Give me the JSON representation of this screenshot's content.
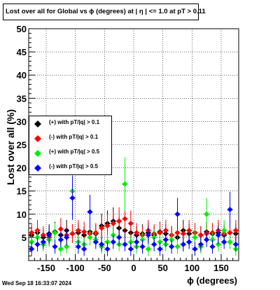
{
  "title": "Lost over all for Global vs ϕ (degrees) at |  η | <= 1.0 at pT > 0.11",
  "footer": "Wed Sep 18 16:33:07 2024",
  "chart_data": {
    "type": "scatter",
    "xlabel": "ϕ (degrees)",
    "ylabel": "Lost over all (%)",
    "xlim": [
      -180,
      180
    ],
    "ylim": [
      0,
      50
    ],
    "xticks": [
      -150,
      -100,
      -50,
      0,
      50,
      100,
      150
    ],
    "yticks": [
      5,
      10,
      15,
      20,
      25,
      30,
      35,
      40,
      45,
      50
    ],
    "grid": true,
    "legend_position": "left-middle",
    "series": [
      {
        "name": "(+) with pT/|q| > 0.1",
        "color": "#000000",
        "x": [
          -175,
          -165,
          -155,
          -145,
          -135,
          -125,
          -115,
          -105,
          -95,
          -85,
          -75,
          -65,
          -55,
          -45,
          -35,
          -25,
          -15,
          -5,
          5,
          15,
          25,
          35,
          45,
          55,
          65,
          75,
          85,
          95,
          105,
          115,
          125,
          135,
          145,
          155,
          165,
          175
        ],
        "y": [
          5.5,
          6.0,
          5.0,
          5.8,
          6.2,
          5.5,
          6.5,
          5.8,
          6.0,
          5.5,
          6.2,
          5.8,
          7.5,
          8.0,
          8.5,
          7.0,
          6.5,
          6.0,
          5.5,
          5.8,
          6.0,
          5.5,
          6.2,
          5.8,
          5.5,
          5.0,
          6.5,
          5.8,
          6.0,
          5.5,
          6.2,
          5.8,
          6.0,
          5.5,
          6.0,
          5.8
        ]
      },
      {
        "name": "(-) with pT/|q| > 0.1",
        "color": "#ff0000",
        "x": [
          -175,
          -165,
          -155,
          -145,
          -135,
          -125,
          -115,
          -105,
          -95,
          -85,
          -75,
          -65,
          -55,
          -45,
          -35,
          -25,
          -15,
          -5,
          5,
          15,
          25,
          35,
          45,
          55,
          65,
          75,
          85,
          95,
          105,
          115,
          125,
          135,
          145,
          155,
          165,
          175
        ],
        "y": [
          6.0,
          6.5,
          5.5,
          5.0,
          6.0,
          6.8,
          5.5,
          5.8,
          6.5,
          6.2,
          5.8,
          6.0,
          7.0,
          7.5,
          8.0,
          8.5,
          9.0,
          8.0,
          6.0,
          5.5,
          6.5,
          5.8,
          6.0,
          6.5,
          5.5,
          6.0,
          5.8,
          6.5,
          6.0,
          5.5,
          5.8,
          6.0,
          6.5,
          5.8,
          6.0,
          6.5
        ]
      },
      {
        "name": "(+) with pT/|q| > 0.5",
        "color": "#00ee00",
        "x": [
          -175,
          -165,
          -155,
          -145,
          -135,
          -125,
          -115,
          -105,
          -95,
          -85,
          -75,
          -65,
          -55,
          -45,
          -35,
          -25,
          -15,
          -5,
          5,
          15,
          25,
          35,
          45,
          55,
          65,
          75,
          85,
          95,
          105,
          115,
          125,
          135,
          145,
          155,
          165,
          175
        ],
        "y": [
          4.0,
          5.0,
          3.5,
          4.5,
          6.0,
          2.5,
          3.0,
          15.0,
          4.0,
          3.5,
          5.0,
          4.5,
          3.0,
          4.0,
          5.5,
          3.5,
          16.5,
          4.0,
          3.0,
          4.5,
          2.5,
          5.0,
          4.0,
          3.5,
          4.5,
          3.0,
          3.5,
          4.0,
          5.0,
          3.0,
          10.0,
          4.5,
          3.5,
          6.5,
          4.0,
          2.5
        ]
      },
      {
        "name": "(-) with pT/|q| > 0.5",
        "color": "#0000ff",
        "x": [
          -175,
          -165,
          -155,
          -145,
          -135,
          -125,
          -115,
          -105,
          -95,
          -85,
          -75,
          -65,
          -55,
          -45,
          -35,
          -25,
          -15,
          -5,
          5,
          15,
          25,
          35,
          45,
          55,
          65,
          75,
          85,
          95,
          105,
          115,
          125,
          135,
          145,
          155,
          165,
          175
        ],
        "y": [
          2.5,
          3.5,
          4.0,
          5.5,
          3.0,
          4.5,
          5.0,
          13.5,
          3.0,
          2.5,
          10.5,
          4.0,
          3.5,
          2.5,
          4.0,
          5.0,
          3.5,
          2.5,
          4.0,
          3.0,
          5.5,
          3.5,
          2.5,
          4.5,
          3.0,
          10.0,
          3.5,
          4.0,
          2.5,
          3.5,
          4.5,
          3.0,
          5.5,
          4.0,
          11.0,
          3.5
        ]
      }
    ]
  }
}
